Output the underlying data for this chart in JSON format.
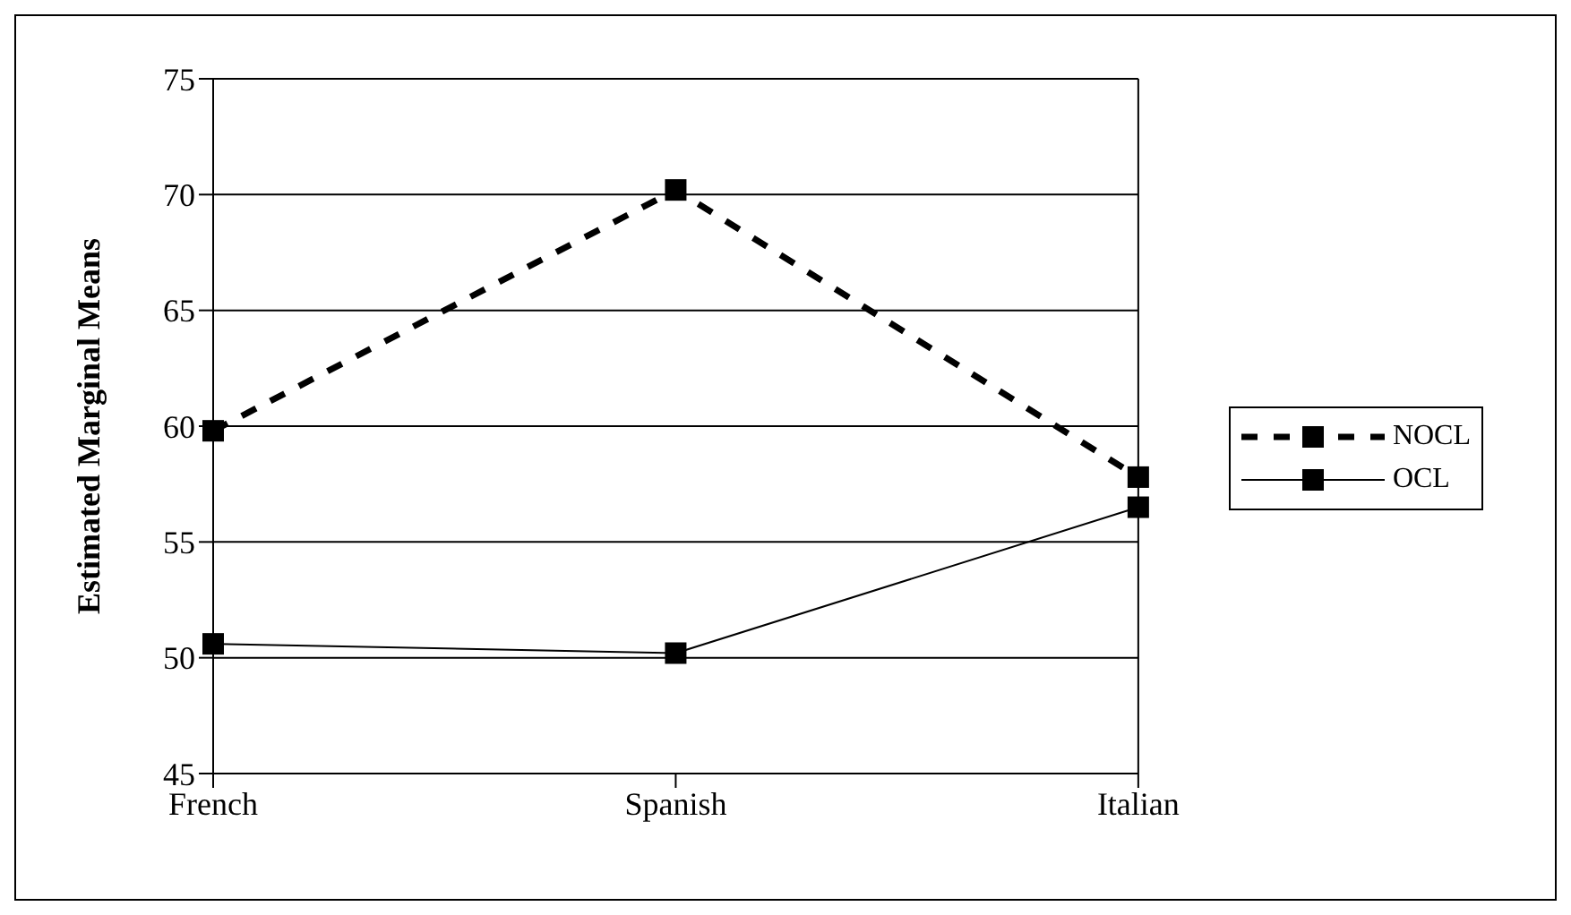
{
  "chart_data": {
    "type": "line",
    "ylabel": "Estimated Marginal Means",
    "categories": [
      "French",
      "Spanish",
      "Italian"
    ],
    "series": [
      {
        "name": "NOCL",
        "color": "#000000",
        "line_style": "dashed",
        "values": [
          59.8,
          70.2,
          57.8
        ]
      },
      {
        "name": "OCL",
        "color": "#000000",
        "line_style": "solid",
        "values": [
          50.6,
          50.2,
          56.5
        ]
      }
    ],
    "ylim": [
      45,
      75
    ],
    "yticks": [
      45,
      50,
      55,
      60,
      65,
      70,
      75
    ],
    "grid": "y",
    "legend": "right",
    "marker": "square"
  }
}
